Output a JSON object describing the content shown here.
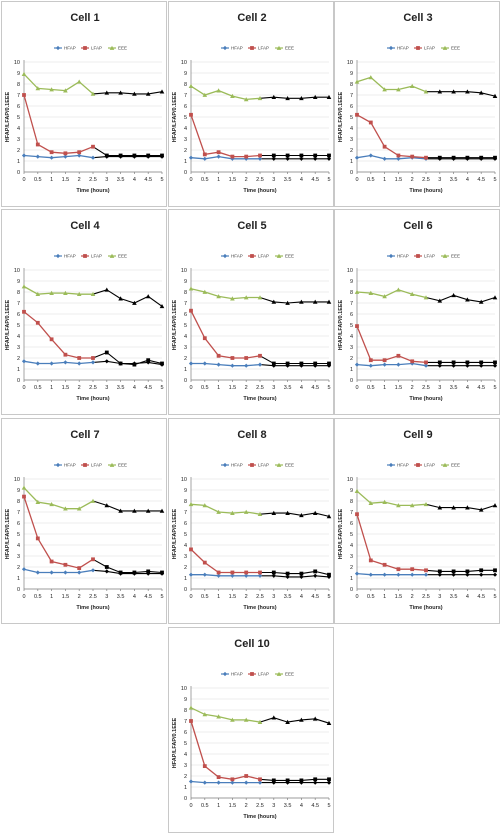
{
  "page": {
    "background": "#ffffff",
    "panel_border": "#c8c8c8"
  },
  "colors": {
    "HFAP": "#4a7ebb",
    "LFAP": "#c0504d",
    "EEE": "#9bbb59",
    "later_marker": "#000000"
  },
  "chart_data": [
    {
      "type": "line",
      "title": "Cell 1",
      "xlabel": "Time (hours)",
      "ylabel": "HFAP/LFAP/0.1EEE",
      "x": [
        0,
        0.5,
        1,
        1.5,
        2,
        2.5,
        3,
        3.5,
        4,
        4.5,
        5
      ],
      "xtick_labels": [
        "0",
        "0.5",
        "1",
        "1.5",
        "2",
        "2.5",
        "3",
        "3.5",
        "4",
        "4.5",
        "5"
      ],
      "ylim": [
        0,
        10
      ],
      "yticks": [
        0,
        1,
        2,
        3,
        4,
        5,
        6,
        7,
        8,
        9,
        10
      ],
      "grid": true,
      "legend_position": "top",
      "series": [
        {
          "name": "HFAP",
          "values": [
            1.5,
            1.4,
            1.3,
            1.4,
            1.5,
            1.3,
            1.4,
            1.4,
            1.4,
            1.4,
            1.4
          ]
        },
        {
          "name": "LFAP",
          "values": [
            7.0,
            2.5,
            1.8,
            1.7,
            1.8,
            2.3,
            1.5,
            1.5,
            1.5,
            1.5,
            1.5
          ]
        },
        {
          "name": "EEE",
          "values": [
            8.9,
            7.6,
            7.5,
            7.4,
            8.2,
            7.1,
            7.2,
            7.2,
            7.1,
            7.1,
            7.3
          ]
        }
      ]
    },
    {
      "type": "line",
      "title": "Cell 2",
      "xlabel": "Time (hours)",
      "ylabel": "HFAP/LFAP/0.1EEE",
      "x": [
        0,
        0.5,
        1,
        1.5,
        2,
        2.5,
        3,
        3.5,
        4,
        4.5,
        5
      ],
      "xtick_labels": [
        "0",
        "0.5",
        "1",
        "1.5",
        "2",
        "2.5",
        "3",
        "3.5",
        "4",
        "4.5",
        "5"
      ],
      "ylim": [
        0,
        10
      ],
      "yticks": [
        0,
        1,
        2,
        3,
        4,
        5,
        6,
        7,
        8,
        9,
        10
      ],
      "grid": true,
      "legend_position": "top",
      "series": [
        {
          "name": "HFAP",
          "values": [
            1.3,
            1.2,
            1.4,
            1.2,
            1.2,
            1.2,
            1.2,
            1.2,
            1.2,
            1.2,
            1.2
          ]
        },
        {
          "name": "LFAP",
          "values": [
            5.2,
            1.6,
            1.8,
            1.4,
            1.4,
            1.5,
            1.5,
            1.5,
            1.5,
            1.5,
            1.5
          ]
        },
        {
          "name": "EEE",
          "values": [
            7.8,
            7.0,
            7.4,
            6.9,
            6.6,
            6.7,
            6.8,
            6.7,
            6.7,
            6.8,
            6.8
          ]
        }
      ]
    },
    {
      "type": "line",
      "title": "Cell 3",
      "xlabel": "Time (hours)",
      "ylabel": "HFAP/LFAP/0.1EEE",
      "x": [
        0,
        0.5,
        1,
        1.5,
        2,
        2.5,
        3,
        3.5,
        4,
        4.5,
        5
      ],
      "xtick_labels": [
        "0",
        "0.5",
        "1",
        "1.5",
        "2",
        "2.5",
        "3",
        "3.5",
        "4",
        "4.5",
        "5"
      ],
      "ylim": [
        0,
        10
      ],
      "yticks": [
        0,
        1,
        2,
        3,
        4,
        5,
        6,
        7,
        8,
        9,
        10
      ],
      "grid": true,
      "legend_position": "top",
      "series": [
        {
          "name": "HFAP",
          "values": [
            1.3,
            1.5,
            1.2,
            1.2,
            1.3,
            1.2,
            1.2,
            1.2,
            1.2,
            1.2,
            1.2
          ]
        },
        {
          "name": "LFAP",
          "values": [
            5.2,
            4.5,
            2.3,
            1.5,
            1.4,
            1.3,
            1.3,
            1.3,
            1.3,
            1.3,
            1.3
          ]
        },
        {
          "name": "EEE",
          "values": [
            8.2,
            8.6,
            7.5,
            7.5,
            7.8,
            7.3,
            7.3,
            7.3,
            7.3,
            7.2,
            6.9
          ]
        }
      ]
    },
    {
      "type": "line",
      "title": "Cell 4",
      "xlabel": "Time (hours)",
      "ylabel": "HFAP/LFAP/0.1EEE",
      "x": [
        0,
        0.5,
        1,
        1.5,
        2,
        2.5,
        3,
        3.5,
        4,
        4.5,
        5
      ],
      "xtick_labels": [
        "0",
        "0.5",
        "1",
        "1.5",
        "2",
        "2.5",
        "3",
        "3.5",
        "4",
        "4.5",
        "5"
      ],
      "ylim": [
        0,
        10
      ],
      "yticks": [
        0,
        1,
        2,
        3,
        4,
        5,
        6,
        7,
        8,
        9,
        10
      ],
      "grid": true,
      "legend_position": "top",
      "series": [
        {
          "name": "HFAP",
          "values": [
            1.7,
            1.5,
            1.5,
            1.6,
            1.5,
            1.6,
            1.7,
            1.5,
            1.5,
            1.6,
            1.4
          ]
        },
        {
          "name": "LFAP",
          "values": [
            6.2,
            5.2,
            3.7,
            2.3,
            2.0,
            2.0,
            2.5,
            1.5,
            1.4,
            1.8,
            1.5
          ]
        },
        {
          "name": "EEE",
          "values": [
            8.5,
            7.8,
            7.9,
            7.9,
            7.8,
            7.8,
            8.2,
            7.4,
            7.0,
            7.6,
            6.7
          ]
        }
      ]
    },
    {
      "type": "line",
      "title": "Cell 5",
      "xlabel": "Time (hours)",
      "ylabel": "HFAP/LFAP/0.1EEE",
      "x": [
        0,
        0.5,
        1,
        1.5,
        2,
        2.5,
        3,
        3.5,
        4,
        4.5,
        5
      ],
      "xtick_labels": [
        "0",
        "0.5",
        "1",
        "1.5",
        "2",
        "2.5",
        "3",
        "3.5",
        "4",
        "4.5",
        "5"
      ],
      "ylim": [
        0,
        10
      ],
      "yticks": [
        0,
        1,
        2,
        3,
        4,
        5,
        6,
        7,
        8,
        9,
        10
      ],
      "grid": true,
      "legend_position": "top",
      "series": [
        {
          "name": "HFAP",
          "values": [
            1.5,
            1.5,
            1.4,
            1.3,
            1.3,
            1.4,
            1.3,
            1.3,
            1.3,
            1.3,
            1.3
          ]
        },
        {
          "name": "LFAP",
          "values": [
            6.3,
            3.8,
            2.2,
            2.0,
            2.0,
            2.2,
            1.5,
            1.5,
            1.5,
            1.5,
            1.5
          ]
        },
        {
          "name": "EEE",
          "values": [
            8.3,
            8.0,
            7.6,
            7.4,
            7.5,
            7.5,
            7.1,
            7.0,
            7.1,
            7.1,
            7.1
          ]
        }
      ]
    },
    {
      "type": "line",
      "title": "Cell 6",
      "xlabel": "Time (hours)",
      "ylabel": "HFAP/LFAP/0.1EEE",
      "x": [
        0,
        0.5,
        1,
        1.5,
        2,
        2.5,
        3,
        3.5,
        4,
        4.5,
        5
      ],
      "xtick_labels": [
        "0",
        "0.5",
        "1",
        "1.5",
        "2",
        "2.5",
        "3",
        "3.5",
        "4",
        "4.5",
        "5"
      ],
      "ylim": [
        0,
        10
      ],
      "yticks": [
        0,
        1,
        2,
        3,
        4,
        5,
        6,
        7,
        8,
        9,
        10
      ],
      "grid": true,
      "legend_position": "top",
      "series": [
        {
          "name": "HFAP",
          "values": [
            1.4,
            1.3,
            1.4,
            1.4,
            1.5,
            1.3,
            1.3,
            1.3,
            1.3,
            1.3,
            1.3
          ]
        },
        {
          "name": "LFAP",
          "values": [
            4.9,
            1.8,
            1.8,
            2.2,
            1.7,
            1.6,
            1.6,
            1.6,
            1.6,
            1.6,
            1.6
          ]
        },
        {
          "name": "EEE",
          "values": [
            8.0,
            7.9,
            7.6,
            8.2,
            7.8,
            7.5,
            7.2,
            7.7,
            7.3,
            7.1,
            7.5
          ]
        }
      ]
    },
    {
      "type": "line",
      "title": "Cell 7",
      "xlabel": "Time (hours)",
      "ylabel": "HFAP/LFAP/0.1EEE",
      "x": [
        0,
        0.5,
        1,
        1.5,
        2,
        2.5,
        3,
        3.5,
        4,
        4.5,
        5
      ],
      "xtick_labels": [
        "0",
        "0.5",
        "1",
        "1.5",
        "2",
        "2.5",
        "3",
        "3.5",
        "4",
        "4.5",
        "5"
      ],
      "ylim": [
        0,
        10
      ],
      "yticks": [
        0,
        1,
        2,
        3,
        4,
        5,
        6,
        7,
        8,
        9,
        10
      ],
      "grid": true,
      "legend_position": "top",
      "series": [
        {
          "name": "HFAP",
          "values": [
            1.8,
            1.5,
            1.5,
            1.5,
            1.5,
            1.7,
            1.6,
            1.4,
            1.4,
            1.4,
            1.4
          ]
        },
        {
          "name": "LFAP",
          "values": [
            8.4,
            4.6,
            2.5,
            2.2,
            1.9,
            2.7,
            2.0,
            1.5,
            1.5,
            1.6,
            1.5
          ]
        },
        {
          "name": "EEE",
          "values": [
            9.2,
            7.9,
            7.7,
            7.3,
            7.3,
            8.0,
            7.6,
            7.1,
            7.1,
            7.1,
            7.1
          ]
        }
      ]
    },
    {
      "type": "line",
      "title": "Cell 8",
      "xlabel": "Time (hours)",
      "ylabel": "HFAP/LFAP/0.1EEE",
      "x": [
        0,
        0.5,
        1,
        1.5,
        2,
        2.5,
        3,
        3.5,
        4,
        4.5,
        5
      ],
      "xtick_labels": [
        "0",
        "0.5",
        "1",
        "1.5",
        "2",
        "2.5",
        "3",
        "3.5",
        "4",
        "4.5",
        "5"
      ],
      "ylim": [
        0,
        10
      ],
      "yticks": [
        0,
        1,
        2,
        3,
        4,
        5,
        6,
        7,
        8,
        9,
        10
      ],
      "grid": true,
      "legend_position": "top",
      "series": [
        {
          "name": "HFAP",
          "values": [
            1.3,
            1.3,
            1.2,
            1.2,
            1.2,
            1.2,
            1.2,
            1.1,
            1.1,
            1.2,
            1.1
          ]
        },
        {
          "name": "LFAP",
          "values": [
            3.6,
            2.4,
            1.5,
            1.5,
            1.5,
            1.5,
            1.5,
            1.4,
            1.4,
            1.6,
            1.3
          ]
        },
        {
          "name": "EEE",
          "values": [
            7.7,
            7.6,
            7.0,
            6.9,
            7.0,
            6.8,
            6.9,
            6.9,
            6.7,
            6.9,
            6.6
          ]
        }
      ]
    },
    {
      "type": "line",
      "title": "Cell 9",
      "xlabel": "Time (hours)",
      "ylabel": "HFAP/LFAP/0.1EEE",
      "x": [
        0,
        0.5,
        1,
        1.5,
        2,
        2.5,
        3,
        3.5,
        4,
        4.5,
        5
      ],
      "xtick_labels": [
        "0",
        "0.5",
        "1",
        "1.5",
        "2",
        "2.5",
        "3",
        "3.5",
        "4",
        "4.5",
        "5"
      ],
      "ylim": [
        0,
        10
      ],
      "yticks": [
        0,
        1,
        2,
        3,
        4,
        5,
        6,
        7,
        8,
        9,
        10
      ],
      "grid": true,
      "legend_position": "top",
      "series": [
        {
          "name": "HFAP",
          "values": [
            1.4,
            1.3,
            1.3,
            1.3,
            1.3,
            1.3,
            1.3,
            1.3,
            1.3,
            1.3,
            1.3
          ]
        },
        {
          "name": "LFAP",
          "values": [
            6.8,
            2.6,
            2.2,
            1.8,
            1.8,
            1.7,
            1.6,
            1.6,
            1.6,
            1.7,
            1.7
          ]
        },
        {
          "name": "EEE",
          "values": [
            8.9,
            7.8,
            7.9,
            7.6,
            7.6,
            7.7,
            7.4,
            7.4,
            7.4,
            7.2,
            7.6
          ]
        }
      ]
    },
    {
      "type": "line",
      "title": "Cell 10",
      "xlabel": "Time (hours)",
      "ylabel": "HFAP/LFAP/0.1EEE",
      "x": [
        0,
        0.5,
        1,
        1.5,
        2,
        2.5,
        3,
        3.5,
        4,
        4.5,
        5
      ],
      "xtick_labels": [
        "0",
        "0.5",
        "1",
        "1.5",
        "2",
        "2.5",
        "3",
        "3.5",
        "4",
        "4.5",
        "5"
      ],
      "ylim": [
        0,
        10
      ],
      "yticks": [
        0,
        1,
        2,
        3,
        4,
        5,
        6,
        7,
        8,
        9,
        10
      ],
      "grid": true,
      "legend_position": "top",
      "series": [
        {
          "name": "HFAP",
          "values": [
            1.5,
            1.4,
            1.4,
            1.4,
            1.4,
            1.4,
            1.4,
            1.4,
            1.4,
            1.4,
            1.4
          ]
        },
        {
          "name": "LFAP",
          "values": [
            7.0,
            2.9,
            1.9,
            1.7,
            2.0,
            1.7,
            1.6,
            1.6,
            1.6,
            1.7,
            1.7
          ]
        },
        {
          "name": "EEE",
          "values": [
            8.2,
            7.6,
            7.4,
            7.1,
            7.1,
            6.9,
            7.3,
            6.9,
            7.1,
            7.2,
            6.8
          ]
        }
      ]
    }
  ]
}
